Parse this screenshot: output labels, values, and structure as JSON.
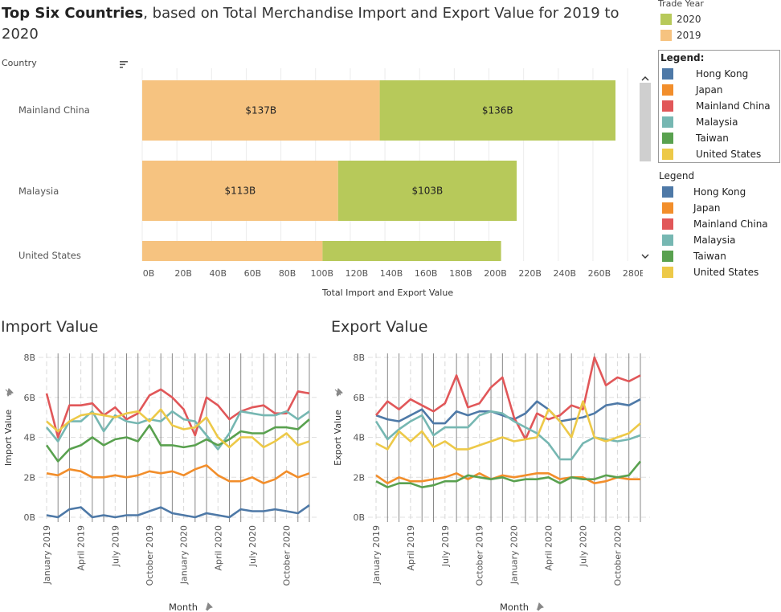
{
  "title": {
    "bold": "Top Six Countries",
    "rest": ", based on Total Merchandise Import and Export Value for 2019 to 2020"
  },
  "trade_year": {
    "title": "Trade Year",
    "items": [
      {
        "label": "2020",
        "color": "#b7c95a"
      },
      {
        "label": "2019",
        "color": "#f6c380"
      }
    ]
  },
  "legend1": {
    "title": "Legend:",
    "items": [
      {
        "label": "Hong Kong",
        "color": "#4e79a7"
      },
      {
        "label": "Japan",
        "color": "#f28e2b"
      },
      {
        "label": "Mainland China",
        "color": "#e15759"
      },
      {
        "label": "Malaysia",
        "color": "#76b7b2"
      },
      {
        "label": "Taiwan",
        "color": "#59a14f"
      },
      {
        "label": "United States",
        "color": "#edc948"
      }
    ]
  },
  "legend2": {
    "title": "Legend",
    "items": [
      {
        "label": "Hong Kong",
        "color": "#4e79a7"
      },
      {
        "label": "Japan",
        "color": "#f28e2b"
      },
      {
        "label": "Mainland China",
        "color": "#e15759"
      },
      {
        "label": "Malaysia",
        "color": "#76b7b2"
      },
      {
        "label": "Taiwan",
        "color": "#59a14f"
      },
      {
        "label": "United States",
        "color": "#edc948"
      }
    ]
  },
  "bar_panel": {
    "country_header": "Country",
    "xlabel": "Total Import and Export Value"
  },
  "chart_data": [
    {
      "type": "bar",
      "orientation": "horizontal",
      "stacked": true,
      "categories": [
        "Mainland China",
        "Malaysia",
        "United States"
      ],
      "series": [
        {
          "name": "2019",
          "values": [
            137,
            113,
            104
          ],
          "labels": [
            "$137B",
            "$113B",
            ""
          ]
        },
        {
          "name": "2020",
          "values": [
            136,
            103,
            103
          ],
          "labels": [
            "$136B",
            "$103B",
            ""
          ]
        }
      ],
      "xlabel": "Total Import and Export Value",
      "xlim": [
        0,
        290
      ],
      "xticks": [
        "0B",
        "20B",
        "40B",
        "60B",
        "80B",
        "100B",
        "120B",
        "140B",
        "160B",
        "180B",
        "200B",
        "220B",
        "240B",
        "260B",
        "280B"
      ],
      "unit": "billions"
    },
    {
      "type": "line",
      "title": "Import Value",
      "xlabel": "Month",
      "ylabel": "Import Value",
      "ylim": [
        0,
        8
      ],
      "yticks": [
        "0B",
        "2B",
        "4B",
        "6B",
        "8B"
      ],
      "x": [
        "2019-01",
        "2019-02",
        "2019-03",
        "2019-04",
        "2019-05",
        "2019-06",
        "2019-07",
        "2019-08",
        "2019-09",
        "2019-10",
        "2019-11",
        "2019-12",
        "2020-01",
        "2020-02",
        "2020-03",
        "2020-04",
        "2020-05",
        "2020-06",
        "2020-07",
        "2020-08",
        "2020-09",
        "2020-10",
        "2020-11",
        "2020-12"
      ],
      "xtick_labels": [
        "January 2019",
        "April 2019",
        "July 2019",
        "October 2019",
        "January 2020",
        "April 2020",
        "July 2020",
        "October 2020"
      ],
      "xtick_index": [
        0,
        3,
        6,
        9,
        12,
        15,
        18,
        21
      ],
      "series": [
        {
          "name": "Hong Kong",
          "values": [
            0.1,
            0.0,
            0.4,
            0.5,
            0.0,
            0.1,
            0.0,
            0.1,
            0.1,
            0.3,
            0.5,
            0.2,
            0.1,
            0.0,
            0.2,
            0.1,
            0.0,
            0.4,
            0.3,
            0.3,
            0.4,
            0.3,
            0.2,
            0.6
          ]
        },
        {
          "name": "Japan",
          "values": [
            2.2,
            2.1,
            2.4,
            2.3,
            2.0,
            2.0,
            2.1,
            2.0,
            2.1,
            2.3,
            2.2,
            2.3,
            2.1,
            2.4,
            2.6,
            2.1,
            1.8,
            1.8,
            2.0,
            1.7,
            1.9,
            2.3,
            2.0,
            2.2
          ]
        },
        {
          "name": "Mainland China",
          "values": [
            6.2,
            4.0,
            5.6,
            5.6,
            5.7,
            5.1,
            5.5,
            4.9,
            5.2,
            6.1,
            6.4,
            6.0,
            5.4,
            4.1,
            6.0,
            5.6,
            4.9,
            5.3,
            5.5,
            5.6,
            5.2,
            5.2,
            6.3,
            6.2
          ]
        },
        {
          "name": "Malaysia",
          "values": [
            4.5,
            3.8,
            4.8,
            4.8,
            5.3,
            4.3,
            5.1,
            4.8,
            4.7,
            4.9,
            4.8,
            5.3,
            4.9,
            4.8,
            4.1,
            3.4,
            4.2,
            5.3,
            5.2,
            5.1,
            5.1,
            5.3,
            4.9,
            5.3
          ]
        },
        {
          "name": "Taiwan",
          "values": [
            3.6,
            2.8,
            3.4,
            3.6,
            4.0,
            3.6,
            3.9,
            4.0,
            3.8,
            4.6,
            3.6,
            3.6,
            3.5,
            3.6,
            3.9,
            3.6,
            3.9,
            4.3,
            4.2,
            4.2,
            4.5,
            4.5,
            4.4,
            4.9
          ]
        },
        {
          "name": "United States",
          "values": [
            4.8,
            4.3,
            4.8,
            5.1,
            5.2,
            5.1,
            5.0,
            5.2,
            5.3,
            4.8,
            5.4,
            4.6,
            4.4,
            4.5,
            5.0,
            4.0,
            3.5,
            4.0,
            4.0,
            3.5,
            3.8,
            4.2,
            3.6,
            3.8
          ]
        }
      ]
    },
    {
      "type": "line",
      "title": "Export Value",
      "xlabel": "Month",
      "ylabel": "Export Value",
      "ylim": [
        0,
        8
      ],
      "yticks": [
        "0B",
        "2B",
        "4B",
        "6B",
        "8B"
      ],
      "x": [
        "2019-01",
        "2019-02",
        "2019-03",
        "2019-04",
        "2019-05",
        "2019-06",
        "2019-07",
        "2019-08",
        "2019-09",
        "2019-10",
        "2019-11",
        "2019-12",
        "2020-01",
        "2020-02",
        "2020-03",
        "2020-04",
        "2020-05",
        "2020-06",
        "2020-07",
        "2020-08",
        "2020-09",
        "2020-10",
        "2020-11",
        "2020-12"
      ],
      "xtick_labels": [
        "January 2019",
        "April 2019",
        "July 2019",
        "October 2019",
        "January 2020",
        "April 2020",
        "July 2020",
        "October 2020"
      ],
      "xtick_index": [
        0,
        3,
        6,
        9,
        12,
        15,
        18,
        21
      ],
      "series": [
        {
          "name": "Hong Kong",
          "values": [
            5.1,
            4.9,
            4.8,
            5.1,
            5.4,
            4.7,
            4.7,
            5.3,
            5.1,
            5.3,
            5.3,
            5.1,
            4.9,
            5.2,
            5.8,
            5.4,
            4.8,
            4.9,
            5.0,
            5.2,
            5.6,
            5.7,
            5.6,
            5.9
          ]
        },
        {
          "name": "Japan",
          "values": [
            2.1,
            1.7,
            2.0,
            1.8,
            1.8,
            1.9,
            2.0,
            2.2,
            1.9,
            2.2,
            1.9,
            2.1,
            2.0,
            2.1,
            2.2,
            2.2,
            1.9,
            2.0,
            2.0,
            1.7,
            1.8,
            2.0,
            1.9,
            1.9
          ]
        },
        {
          "name": "Mainland China",
          "values": [
            5.1,
            5.8,
            5.4,
            5.9,
            5.6,
            5.3,
            5.7,
            7.1,
            5.5,
            5.7,
            6.5,
            7.0,
            5.0,
            3.9,
            5.2,
            4.9,
            5.1,
            5.6,
            5.4,
            8.0,
            6.6,
            7.0,
            6.8,
            7.1
          ]
        },
        {
          "name": "Malaysia",
          "values": [
            4.8,
            3.9,
            4.4,
            4.8,
            5.1,
            4.1,
            4.5,
            4.5,
            4.5,
            5.1,
            5.3,
            5.2,
            4.8,
            4.5,
            4.2,
            3.7,
            2.9,
            2.9,
            3.7,
            4.0,
            3.9,
            3.8,
            3.9,
            4.1
          ]
        },
        {
          "name": "Taiwan",
          "values": [
            1.8,
            1.5,
            1.7,
            1.7,
            1.5,
            1.6,
            1.8,
            1.8,
            2.1,
            2.0,
            1.9,
            2.0,
            1.8,
            1.9,
            1.9,
            2.0,
            1.7,
            2.0,
            1.9,
            1.9,
            2.1,
            2.0,
            2.1,
            2.8
          ]
        },
        {
          "name": "United States",
          "values": [
            3.7,
            3.4,
            4.3,
            3.8,
            4.3,
            3.5,
            3.8,
            3.4,
            3.4,
            3.6,
            3.8,
            4.0,
            3.8,
            3.9,
            4.0,
            5.4,
            4.8,
            4.0,
            5.8,
            4.0,
            3.8,
            4.0,
            4.2,
            4.7
          ]
        }
      ]
    }
  ]
}
